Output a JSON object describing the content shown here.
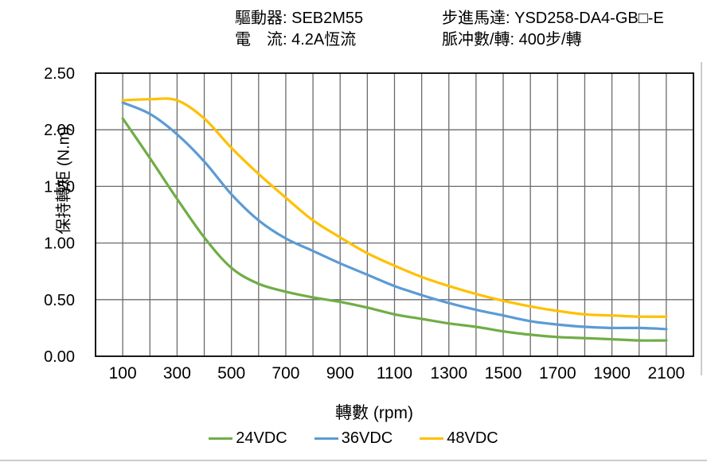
{
  "header": {
    "left_line1": "驅動器: SEB2M55",
    "left_line2": "電　流: 4.2A恆流",
    "right_line1": "步進馬達: YSD258-DA4-GB□-E",
    "right_line2": "脈冲數/轉: 400步/轉"
  },
  "chart_data": {
    "type": "line",
    "title": "",
    "xlabel": "轉數 (rpm)",
    "ylabel": "保持轉矩 (N.m)",
    "xlim": [
      0,
      2200
    ],
    "ylim": [
      0,
      2.5
    ],
    "grid": true,
    "x_grid_step_rpm": 100,
    "y_grid_step": 0.5,
    "x_tick_labels": [
      100,
      300,
      500,
      700,
      900,
      1100,
      1300,
      1500,
      1700,
      1900,
      2100
    ],
    "y_tick_labels": [
      "0.00",
      "0.50",
      "1.00",
      "1.50",
      "2.00",
      "2.50"
    ],
    "legend_position": "bottom",
    "x": [
      100,
      200,
      300,
      400,
      500,
      600,
      700,
      800,
      900,
      1000,
      1100,
      1200,
      1300,
      1400,
      1500,
      1600,
      1700,
      1800,
      1900,
      2000,
      2100
    ],
    "series": [
      {
        "name": "24VDC",
        "color": "#70AD47",
        "values": [
          2.1,
          1.75,
          1.39,
          1.05,
          0.78,
          0.64,
          0.57,
          0.52,
          0.48,
          0.43,
          0.37,
          0.33,
          0.29,
          0.26,
          0.22,
          0.19,
          0.17,
          0.16,
          0.15,
          0.14,
          0.14
        ]
      },
      {
        "name": "36VDC",
        "color": "#5B9BD5",
        "values": [
          2.24,
          2.14,
          1.96,
          1.72,
          1.43,
          1.2,
          1.04,
          0.93,
          0.82,
          0.72,
          0.62,
          0.54,
          0.47,
          0.41,
          0.36,
          0.31,
          0.28,
          0.26,
          0.25,
          0.25,
          0.24
        ]
      },
      {
        "name": "48VDC",
        "color": "#FFC000",
        "values": [
          2.26,
          2.27,
          2.26,
          2.1,
          1.84,
          1.61,
          1.4,
          1.2,
          1.05,
          0.91,
          0.8,
          0.7,
          0.62,
          0.55,
          0.49,
          0.44,
          0.4,
          0.37,
          0.36,
          0.35,
          0.35
        ]
      }
    ]
  },
  "colors": {
    "grid": "#6b6b6b",
    "plot_border": "#000000",
    "tick_text": "#000000",
    "page_edge": "#cccccc"
  }
}
